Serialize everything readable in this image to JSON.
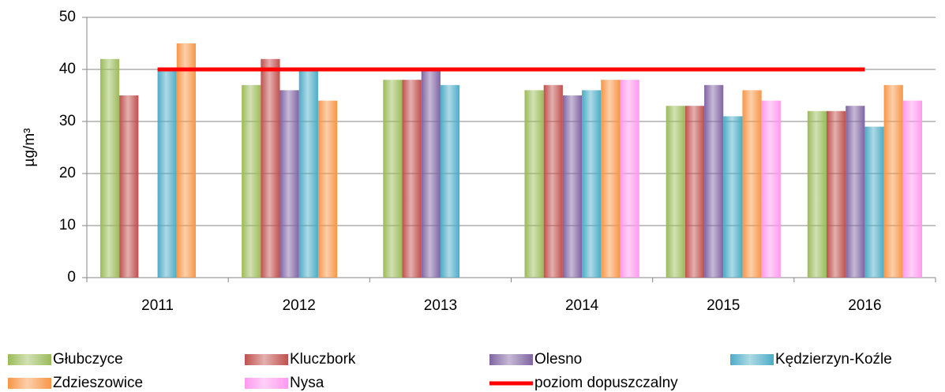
{
  "chart_data": {
    "type": "bar",
    "y_label": "µg/m³",
    "categories": [
      "2011",
      "2012",
      "2013",
      "2014",
      "2015",
      "2016"
    ],
    "series": [
      {
        "name": "Głubczyce",
        "color": "#9bbb59",
        "values": [
          42,
          37,
          38,
          36,
          33,
          32
        ]
      },
      {
        "name": "Kluczbork",
        "color": "#c0504d",
        "values": [
          35,
          42,
          38,
          37,
          33,
          32
        ]
      },
      {
        "name": "Olesno",
        "color": "#8064a2",
        "values": [
          null,
          36,
          40,
          35,
          37,
          33
        ]
      },
      {
        "name": "Kędzierzyn-Koźle",
        "color": "#4bacc6",
        "values": [
          40,
          40,
          37,
          36,
          31,
          29
        ]
      },
      {
        "name": "Zdzieszowice",
        "color": "#f79646",
        "values": [
          45,
          34,
          null,
          38,
          36,
          37
        ]
      },
      {
        "name": "Nysa",
        "color": "#ff99ee",
        "values": [
          null,
          null,
          null,
          38,
          34,
          34
        ]
      },
      {
        "name": "poziom dopuszczalny",
        "color": "#ff0000",
        "type": "line",
        "values": [
          40,
          40,
          40,
          40,
          40,
          40
        ]
      }
    ],
    "ylim": [
      0,
      50
    ],
    "yticks": [
      0,
      10,
      20,
      30,
      40,
      50
    ],
    "grid": true
  }
}
